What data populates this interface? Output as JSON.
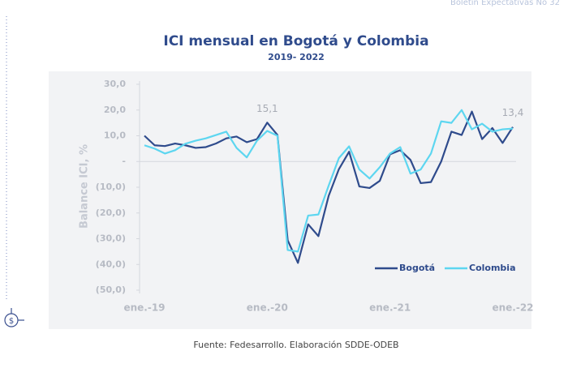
{
  "header": "Boletín Expectativas No 32",
  "chart_data": {
    "type": "line",
    "title": "ICI mensual en Bogotá y Colombia",
    "subtitle": "2019- 2022",
    "y_label": "Balance ICI, %",
    "source": "Fuente: Fedesarrollo. Elaboración SDDE-ODEB",
    "categories": [
      "ene.-19",
      null,
      null,
      null,
      null,
      null,
      null,
      null,
      null,
      null,
      null,
      null,
      "ene.-20",
      null,
      null,
      null,
      null,
      null,
      null,
      null,
      null,
      null,
      null,
      null,
      "ene.-21",
      null,
      null,
      null,
      null,
      null,
      null,
      null,
      null,
      null,
      null,
      null,
      "ene.-22"
    ],
    "series": [
      {
        "name": "Bogotá",
        "color": "#2f4b8c",
        "values": [
          10,
          6.3,
          6,
          7,
          6.3,
          5.3,
          5.6,
          7,
          9,
          9.7,
          7.5,
          8.7,
          15.1,
          10.3,
          -30.6,
          -39.4,
          -24.4,
          -29,
          -13.4,
          -3,
          3.8,
          -9.7,
          -10.3,
          -7.5,
          2.8,
          4.4,
          0.6,
          -8.4,
          -8,
          0,
          11.6,
          10.3,
          19.4,
          8.7,
          13,
          7.2,
          13.4
        ],
        "value_labels": [
          null,
          null,
          null,
          null,
          null,
          null,
          null,
          null,
          null,
          null,
          null,
          null,
          "15,1",
          null,
          null,
          null,
          null,
          null,
          null,
          null,
          null,
          null,
          null,
          null,
          null,
          null,
          null,
          null,
          null,
          null,
          null,
          null,
          null,
          null,
          null,
          null,
          "13,4"
        ]
      },
      {
        "name": "Colombia",
        "color": "#5dd6f0",
        "values": [
          6.3,
          5,
          3.1,
          4.4,
          6.9,
          8.1,
          9,
          10.3,
          11.6,
          5.3,
          1.6,
          8.1,
          11.9,
          10,
          -34.4,
          -35,
          -21,
          -20.6,
          -9.4,
          1.3,
          5.9,
          -3.1,
          -6.6,
          -2.2,
          3.1,
          5.6,
          -4.7,
          -3.1,
          3.1,
          15.6,
          15,
          20,
          12.5,
          14.7,
          11.6,
          12.5,
          12.8
        ]
      }
    ],
    "ylim": [
      -50,
      30
    ],
    "yticks": [
      {
        "value": 30,
        "label": "30,0"
      },
      {
        "value": 20,
        "label": "20,0"
      },
      {
        "value": 10,
        "label": "10,0"
      },
      {
        "value": 0,
        "label": "-"
      },
      {
        "value": -10,
        "label": "(10,0)"
      },
      {
        "value": -20,
        "label": "(20,0)"
      },
      {
        "value": -30,
        "label": "(30,0)"
      },
      {
        "value": -40,
        "label": "(40,0)"
      },
      {
        "value": -50,
        "label": "(50,0)"
      }
    ],
    "legend": "lower right"
  }
}
